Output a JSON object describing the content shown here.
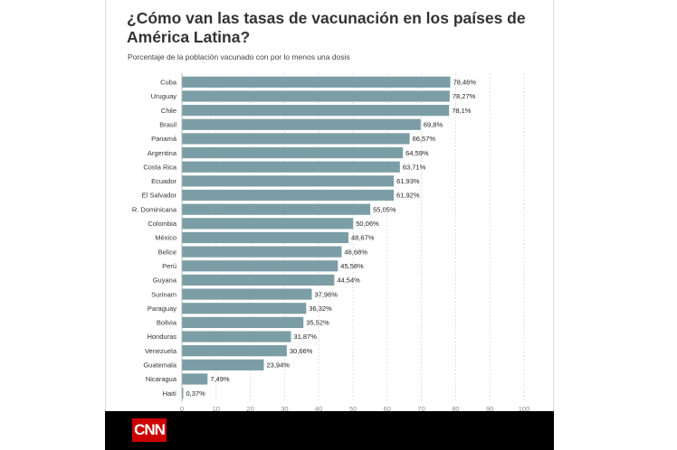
{
  "header": {
    "title": "¿Cómo van las tasas de vacunación en los países de América Latina?",
    "subtitle": "Porcentaje de la población vacunado con por lo menos una dosis"
  },
  "footer": {
    "logo_text": "CNN"
  },
  "colors": {
    "bar": "#7b9ea6",
    "grid": "#d8d8d8",
    "logo_bg": "#cc0000",
    "footer_bg": "#000000"
  },
  "chart_data": {
    "type": "bar",
    "orientation": "horizontal",
    "title": "¿Cómo van las tasas de vacunación en los países de América Latina?",
    "subtitle": "Porcentaje de la población vacunado con por lo menos una dosis",
    "xlim": [
      0,
      100
    ],
    "ticks": [
      "0",
      "10",
      "20",
      "30",
      "40",
      "50",
      "60",
      "70",
      "80",
      "90",
      "100"
    ],
    "grid": true,
    "categories": [
      "Cuba",
      "Uruguay",
      "Chile",
      "Brasil",
      "Panamá",
      "Argentina",
      "Costa Rica",
      "Ecuador",
      "El Salvador",
      "R. Dominicana",
      "Colombia",
      "México",
      "Belice",
      "Perú",
      "Guyana",
      "Surinam",
      "Paraguay",
      "Bolivia",
      "Honduras",
      "Venezuela",
      "Guatemala",
      "Nicaragua",
      "Haití"
    ],
    "values": [
      78.46,
      78.27,
      78.1,
      69.8,
      66.57,
      64.59,
      63.71,
      61.93,
      61.92,
      55.05,
      50.06,
      48.67,
      46.68,
      45.58,
      44.54,
      37.96,
      36.32,
      35.52,
      31.87,
      30.66,
      23.94,
      7.49,
      0.37
    ],
    "value_labels": [
      "78,46%",
      "78,27%",
      "78,1%",
      "69,8%",
      "66,57%",
      "64,59%",
      "63,71%",
      "61,93%",
      "61,92%",
      "55,05%",
      "50,06%",
      "48,67%",
      "46,68%",
      "45,58%",
      "44,54%",
      "37,96%",
      "36,32%",
      "35,52%",
      "31,87%",
      "30,66%",
      "23,94%",
      "7,49%",
      "0,37%"
    ]
  }
}
